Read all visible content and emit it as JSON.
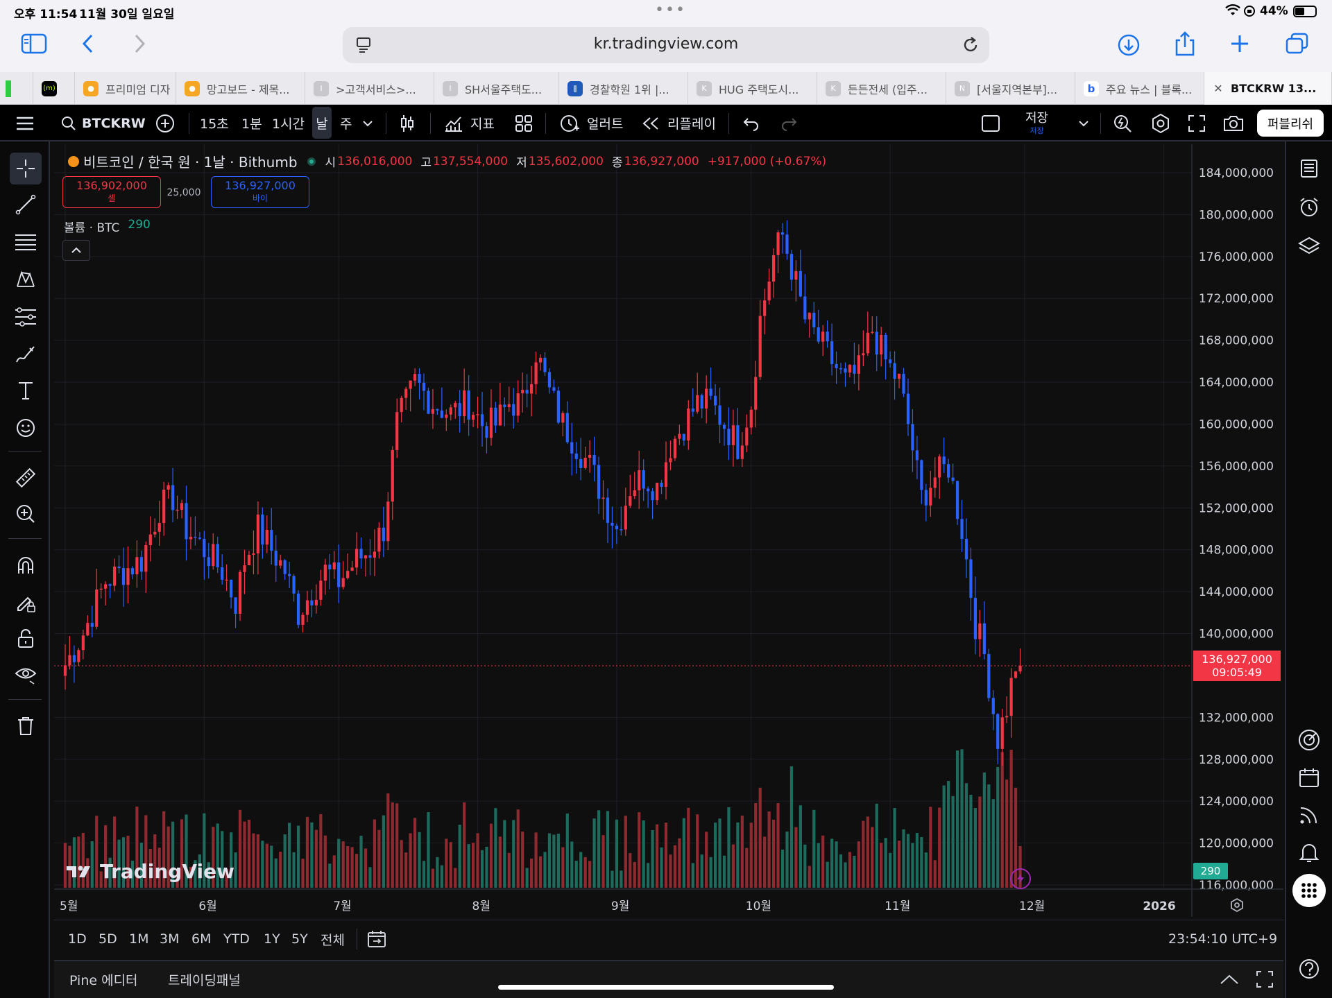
{
  "status": {
    "time": "오후 11:54",
    "date": "11월 30일 일요일",
    "battery": "44%"
  },
  "safari": {
    "url": "kr.tradingview.com"
  },
  "tabs": [
    {
      "label": "프리미엄 디자",
      "color": "#f5a623"
    },
    {
      "label": "망고보드 - 제목...",
      "color": "#f5a623"
    },
    {
      "label": ">고객서비스>...",
      "color": "#c8c8cc"
    },
    {
      "label": "SH서울주택도...",
      "color": "#c8c8cc"
    },
    {
      "label": "경찰학원 1위 |...",
      "color": "#1e5bb8"
    },
    {
      "label": "HUG 주택도시...",
      "color": "#c8c8cc"
    },
    {
      "label": "든든전세 (입주...",
      "color": "#c8c8cc"
    },
    {
      "label": "[서울지역본부]...",
      "color": "#c8c8cc"
    },
    {
      "label": "주요 뉴스 | 블록...",
      "color": "#2962ff"
    },
    {
      "label": "BTCKRW 13...",
      "color": "#555555"
    }
  ],
  "tabs_first_badge": "(m)",
  "tv": {
    "symbol": "BTCKRW",
    "intervals": [
      "15초",
      "1분",
      "1시간",
      "날",
      "주"
    ],
    "indicators": "지표",
    "alert": "얼러트",
    "replay": "리플레이",
    "save": "저장",
    "save_sub": "저장",
    "publish": "퍼블리쉬"
  },
  "legend": {
    "title": "비트코인 / 한국 원 · 1날 · Bithumb",
    "o_label": "시",
    "o": "136,016,000",
    "h_label": "고",
    "h": "137,554,000",
    "l_label": "저",
    "l": "135,602,000",
    "c_label": "종",
    "c": "136,927,000",
    "change": "+917,000 (+0.67%)",
    "sell_price": "136,902,000",
    "sell_label": "셀",
    "spread": "25,000",
    "buy_price": "136,927,000",
    "buy_label": "바이",
    "volume_label": "볼륨 · BTC",
    "volume_value": "290"
  },
  "price_tag": {
    "price": "136,927,000",
    "countdown": "09:05:49"
  },
  "volume_tag": "290",
  "watermark": "TradingView",
  "bottom": {
    "ranges": [
      "1D",
      "5D",
      "1M",
      "3M",
      "6M",
      "YTD",
      "1Y",
      "5Y",
      "전체"
    ],
    "clock": "23:54:10 UTC+9",
    "panel_tabs": [
      "Pine 에디터",
      "트레이딩패널"
    ]
  },
  "colors": {
    "up": "#f23645",
    "down": "#2962ff",
    "vol_up": "#8e2a30",
    "vol_down": "#1e6b5e",
    "price_tag": "#f23645",
    "vol_tag": "#22ab94"
  },
  "chart_data": {
    "type": "candlestick",
    "title": "비트코인 / 한국 원 · 1날 · Bithumb",
    "y_ticks": [
      "184,000,000",
      "180,000,000",
      "176,000,000",
      "172,000,000",
      "168,000,000",
      "164,000,000",
      "160,000,000",
      "156,000,000",
      "152,000,000",
      "148,000,000",
      "144,000,000",
      "140,000,000",
      "132,000,000",
      "128,000,000",
      "124,000,000",
      "120,000,000",
      "116,000,000"
    ],
    "ylim": [
      116000000,
      186000000
    ],
    "x_ticks": [
      "5월",
      "6월",
      "7월",
      "8월",
      "9월",
      "10월",
      "11월",
      "12월",
      "2026"
    ],
    "close_points_mm": [
      [
        "05-01",
        137
      ],
      [
        "05-05",
        140
      ],
      [
        "05-10",
        145
      ],
      [
        "05-14",
        146
      ],
      [
        "05-18",
        147
      ],
      [
        "05-22",
        152
      ],
      [
        "05-25",
        153
      ],
      [
        "05-28",
        150
      ],
      [
        "06-01",
        148
      ],
      [
        "06-05",
        146
      ],
      [
        "06-08",
        143
      ],
      [
        "06-10",
        147
      ],
      [
        "06-13",
        150
      ],
      [
        "06-16",
        148
      ],
      [
        "06-19",
        146
      ],
      [
        "06-22",
        142
      ],
      [
        "06-25",
        144
      ],
      [
        "06-28",
        146
      ],
      [
        "07-01",
        145
      ],
      [
        "07-05",
        147
      ],
      [
        "07-08",
        148
      ],
      [
        "07-11",
        150
      ],
      [
        "07-14",
        160
      ],
      [
        "07-18",
        164
      ],
      [
        "07-22",
        162
      ],
      [
        "07-26",
        161
      ],
      [
        "07-30",
        162
      ],
      [
        "08-02",
        160
      ],
      [
        "08-05",
        160
      ],
      [
        "08-08",
        162
      ],
      [
        "08-11",
        162
      ],
      [
        "08-14",
        167
      ],
      [
        "08-17",
        163
      ],
      [
        "08-20",
        160
      ],
      [
        "08-23",
        158
      ],
      [
        "08-26",
        156
      ],
      [
        "08-29",
        153
      ],
      [
        "09-01",
        150
      ],
      [
        "09-04",
        154
      ],
      [
        "09-07",
        155
      ],
      [
        "09-10",
        154
      ],
      [
        "09-13",
        158
      ],
      [
        "09-16",
        160
      ],
      [
        "09-19",
        162
      ],
      [
        "09-22",
        162
      ],
      [
        "09-25",
        160
      ],
      [
        "09-28",
        158
      ],
      [
        "10-01",
        162
      ],
      [
        "10-03",
        170
      ],
      [
        "10-06",
        176
      ],
      [
        "10-08",
        178
      ],
      [
        "10-10",
        175
      ],
      [
        "10-13",
        170
      ],
      [
        "10-16",
        168
      ],
      [
        "10-19",
        166
      ],
      [
        "10-22",
        164
      ],
      [
        "10-25",
        165
      ],
      [
        "10-28",
        169
      ],
      [
        "10-31",
        166
      ],
      [
        "11-03",
        164
      ],
      [
        "11-05",
        160
      ],
      [
        "11-08",
        153
      ],
      [
        "11-11",
        155
      ],
      [
        "11-14",
        156
      ],
      [
        "11-17",
        150
      ],
      [
        "11-20",
        141
      ],
      [
        "11-22",
        138
      ],
      [
        "11-25",
        130
      ],
      [
        "11-27",
        133
      ],
      [
        "11-29",
        137
      ],
      [
        "11-30",
        136.927
      ]
    ],
    "volume_last": 290
  }
}
